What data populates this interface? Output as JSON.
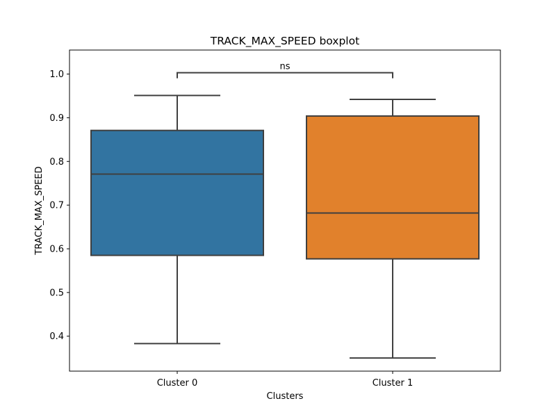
{
  "chart_data": {
    "type": "boxplot",
    "title": "TRACK_MAX_SPEED boxplot",
    "xlabel": "Clusters",
    "ylabel": "TRACK_MAX_SPEED",
    "ylim": [
      0.32,
      1.055
    ],
    "yticks": [
      "0.4",
      "0.5",
      "0.6",
      "0.7",
      "0.8",
      "0.9",
      "1.0"
    ],
    "grid": false,
    "categories": [
      "Cluster 0",
      "Cluster 1"
    ],
    "boxes": [
      {
        "category": "Cluster 0",
        "whisker_low": 0.383,
        "q1": 0.585,
        "median": 0.771,
        "q3": 0.871,
        "whisker_high": 0.951,
        "color": "#3274a1"
      },
      {
        "category": "Cluster 1",
        "whisker_low": 0.35,
        "q1": 0.577,
        "median": 0.682,
        "q3": 0.904,
        "whisker_high": 0.942,
        "color": "#e1812c"
      }
    ],
    "annotation": {
      "text": "ns",
      "between": [
        "Cluster 0",
        "Cluster 1"
      ],
      "y": 1.003
    }
  }
}
